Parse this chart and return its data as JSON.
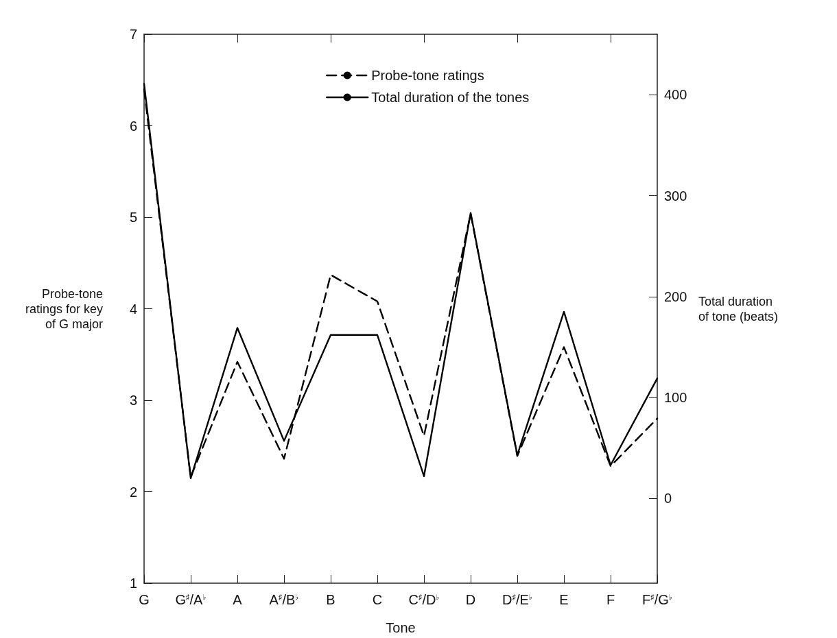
{
  "chart_data": {
    "type": "line",
    "xlabel": "Tone",
    "ylabel": "Probe-tone ratings for key of G major",
    "y2label": "Total duration of tone (beats)",
    "categories": [
      "G",
      "G$^{♯}$/A$^{♭}$",
      "A",
      "A$^{♯}$/B$^{♭}$",
      "B",
      "C",
      "C$^{♯}$/D$^{♭}$",
      "D",
      "D$^{♯}$/E$^{♭}$",
      "E",
      "F",
      "F$^{♯}$/G$^{♭}$"
    ],
    "series": [
      {
        "name": "Probe-tone ratings",
        "color": "#000000",
        "line_style": "dashed",
        "values": [
          6.4,
          2.16,
          3.42,
          2.36,
          4.37,
          4.08,
          2.61,
          5.04,
          2.39,
          3.58,
          2.28,
          2.8
        ]
      },
      {
        "name": "Total duration of the tones",
        "color": "#000000",
        "line_style": "solid",
        "axis": "y2",
        "values": [
          411,
          20,
          169,
          57,
          162,
          162,
          22,
          283,
          43,
          185,
          33,
          119
        ]
      }
    ],
    "ylim": [
      1,
      7
    ],
    "yticks": [
      1,
      2,
      3,
      4,
      5,
      6,
      7
    ],
    "y2lim": [
      -84,
      460
    ],
    "y2ticks": [
      0,
      100,
      200,
      300,
      400
    ],
    "marker": "none",
    "grid": false,
    "legend": "top"
  }
}
